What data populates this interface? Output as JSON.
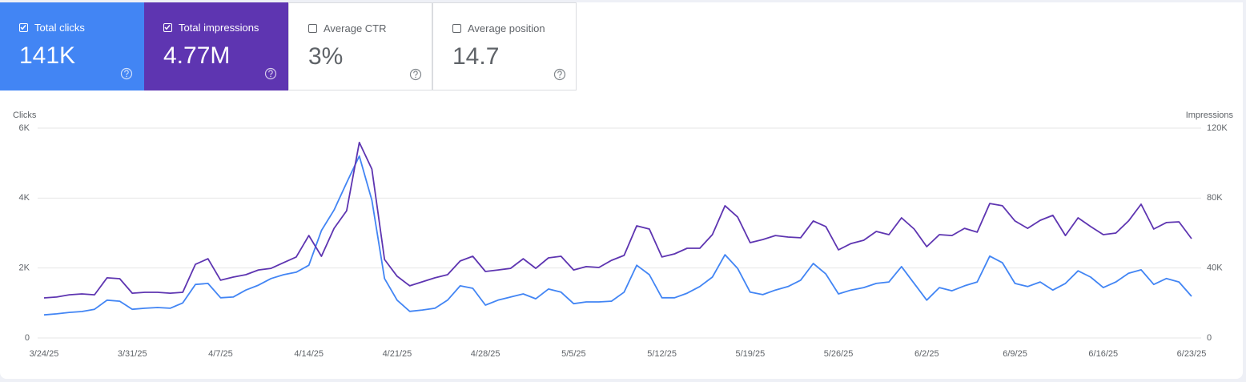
{
  "metrics": [
    {
      "label": "Total clicks",
      "value": "141K",
      "checked": true,
      "color": "#4285f4"
    },
    {
      "label": "Total impressions",
      "value": "4.77M",
      "checked": true,
      "color": "#5e35b1"
    },
    {
      "label": "Average CTR",
      "value": "3%",
      "checked": false,
      "color": "#ffffff"
    },
    {
      "label": "Average position",
      "value": "14.7",
      "checked": false,
      "color": "#ffffff"
    }
  ],
  "chart_data": {
    "type": "line",
    "y_label": "Clicks",
    "y2_label": "Impressions",
    "categories": [
      "3/24/25",
      null,
      null,
      null,
      null,
      null,
      null,
      "3/31/25",
      null,
      null,
      null,
      null,
      null,
      null,
      "4/7/25",
      null,
      null,
      null,
      null,
      null,
      null,
      "4/14/25",
      null,
      null,
      null,
      null,
      null,
      null,
      "4/21/25",
      null,
      null,
      null,
      null,
      null,
      null,
      "4/28/25",
      null,
      null,
      null,
      null,
      null,
      null,
      "5/5/25",
      null,
      null,
      null,
      null,
      null,
      null,
      "5/12/25",
      null,
      null,
      null,
      null,
      null,
      null,
      "5/19/25",
      null,
      null,
      null,
      null,
      null,
      null,
      "5/26/25",
      null,
      null,
      null,
      null,
      null,
      null,
      "6/2/25",
      null,
      null,
      null,
      null,
      null,
      null,
      "6/9/25",
      null,
      null,
      null,
      null,
      null,
      null,
      "6/16/25",
      null,
      null,
      null,
      null,
      null,
      null,
      "6/23/25"
    ],
    "series": [
      {
        "name": "Total clicks",
        "color": "#4285f4",
        "values": [
          660,
          690,
          730,
          755,
          820,
          1080,
          1050,
          820,
          850,
          870,
          850,
          1000,
          1530,
          1560,
          1150,
          1170,
          1370,
          1510,
          1700,
          1810,
          1880,
          2080,
          3070,
          3660,
          4440,
          5200,
          3940,
          1700,
          1080,
          760,
          800,
          850,
          1080,
          1490,
          1420,
          940,
          1080,
          1170,
          1260,
          1120,
          1400,
          1310,
          980,
          1030,
          1030,
          1050,
          1310,
          2080,
          1810,
          1150,
          1150,
          1280,
          1470,
          1740,
          2380,
          1990,
          1310,
          1240,
          1370,
          1470,
          1650,
          2130,
          1830,
          1260,
          1370,
          1440,
          1560,
          1600,
          2040,
          1560,
          1080,
          1440,
          1350,
          1490,
          1600,
          2340,
          2150,
          1560,
          1470,
          1600,
          1370,
          1560,
          1920,
          1740,
          1440,
          1600,
          1850,
          1950,
          1530,
          1700,
          1600,
          1190
        ]
      },
      {
        "name": "Total impressions",
        "color": "#5e35b1",
        "axis": "y2",
        "values": [
          22900,
          23400,
          24700,
          25200,
          24700,
          34400,
          33900,
          25600,
          26100,
          26100,
          25600,
          26100,
          42100,
          45300,
          33000,
          34800,
          36200,
          38900,
          39800,
          43100,
          46300,
          58600,
          46700,
          62700,
          72800,
          111800,
          96600,
          44900,
          35300,
          29800,
          32100,
          34400,
          36200,
          44000,
          46700,
          38000,
          38900,
          39800,
          45300,
          39800,
          45800,
          46700,
          38900,
          40800,
          40300,
          44400,
          47200,
          64100,
          62300,
          46300,
          48100,
          51300,
          51300,
          59100,
          75600,
          69200,
          54500,
          56300,
          58600,
          57700,
          57300,
          66900,
          63700,
          50400,
          54000,
          55900,
          60900,
          59100,
          68700,
          62300,
          52200,
          59100,
          58600,
          62700,
          60500,
          76900,
          75600,
          66900,
          62700,
          67300,
          70100,
          58600,
          68700,
          63700,
          59100,
          60000,
          66900,
          76500,
          62300,
          66000,
          66400,
          56800
        ]
      }
    ],
    "ylim": [
      0,
      6000
    ],
    "yticks": [
      0,
      {
        "value": 2000,
        "label": "2K"
      },
      {
        "value": 4000,
        "label": "4K"
      },
      {
        "value": 6000,
        "label": "6K"
      }
    ],
    "y2lim": [
      0,
      120000
    ],
    "y2ticks": [
      0,
      {
        "value": 40000,
        "label": "40K"
      },
      {
        "value": 80000,
        "label": "80K"
      },
      {
        "value": 120000,
        "label": "120K"
      }
    ],
    "grid": true
  }
}
